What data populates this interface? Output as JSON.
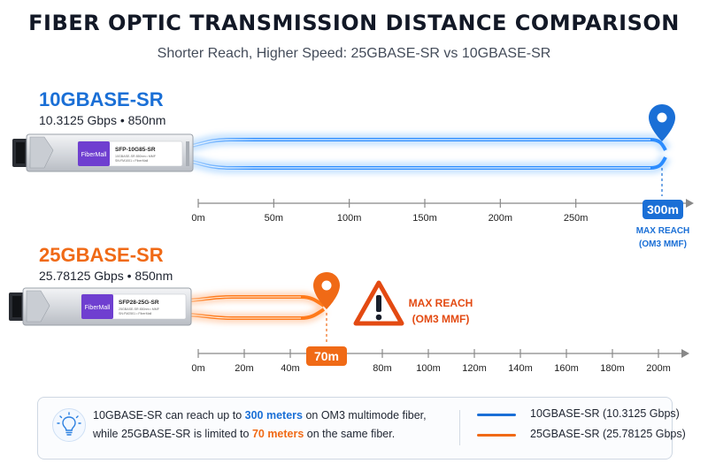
{
  "header": {
    "title": "FIBER OPTIC TRANSMISSION DISTANCE COMPARISON",
    "subtitle": "Shorter Reach, Higher Speed: 25GBASE-SR vs 10GBASE-SR"
  },
  "colors": {
    "blue": "#1a6fd6",
    "orange": "#f06a16",
    "warning_red": "#e34a12",
    "axis": "#888888"
  },
  "sections": [
    {
      "id": "10g",
      "name": "10GBASE-SR",
      "spec": "10.3125 Gbps • 850nm",
      "module_brand": "FiberMall",
      "module_label": "SFP-10G85-SR",
      "module_sub1": "10GBASE-SR  850nm • MMF",
      "module_sub2": "SN:FM1001 • FiberMall",
      "axis_ticks": [
        "0m",
        "50m",
        "100m",
        "150m",
        "200m",
        "250m"
      ],
      "axis_max": 300,
      "max_reach_m": 300,
      "badge": "300m",
      "reach_label_1": "MAX REACH",
      "reach_label_2": "(OM3 MMF)",
      "pin_icon": "location-pin-icon"
    },
    {
      "id": "25g",
      "name": "25GBASE-SR",
      "spec": "25.78125 Gbps • 850nm",
      "module_brand": "FiberMall",
      "module_label": "SFP28-25G-SR",
      "module_sub1": "25GBASE-SR  850nm • MMF",
      "module_sub2": "SN:FM2501 • FiberMall",
      "axis_ticks": [
        "0m",
        "20m",
        "40m",
        "80m",
        "100m",
        "120m",
        "140m",
        "160m",
        "180m",
        "200m"
      ],
      "axis_max": 200,
      "max_reach_m": 70,
      "badge": "70m",
      "reach_label_1": "MAX REACH",
      "reach_label_2": "(OM3 MMF)",
      "pin_icon": "location-pin-icon",
      "warning_icon": "warning-triangle-icon"
    }
  ],
  "info": {
    "icon": "lightbulb-icon",
    "line1_prefix": "10GBASE-SR can reach up to",
    "line1_highlight": "300 meters",
    "line1_suffix": "on OM3 multimode fiber,",
    "line2_prefix": "while 25GBASE-SR is limited to",
    "line2_highlight": "70 meters",
    "line2_suffix": "on the same fiber."
  },
  "legend": [
    {
      "label": "10GBASE-SR (10.3125 Gbps)",
      "color": "#1a6fd6"
    },
    {
      "label": "25GBASE-SR (25.78125 Gbps)",
      "color": "#f06a16"
    }
  ]
}
